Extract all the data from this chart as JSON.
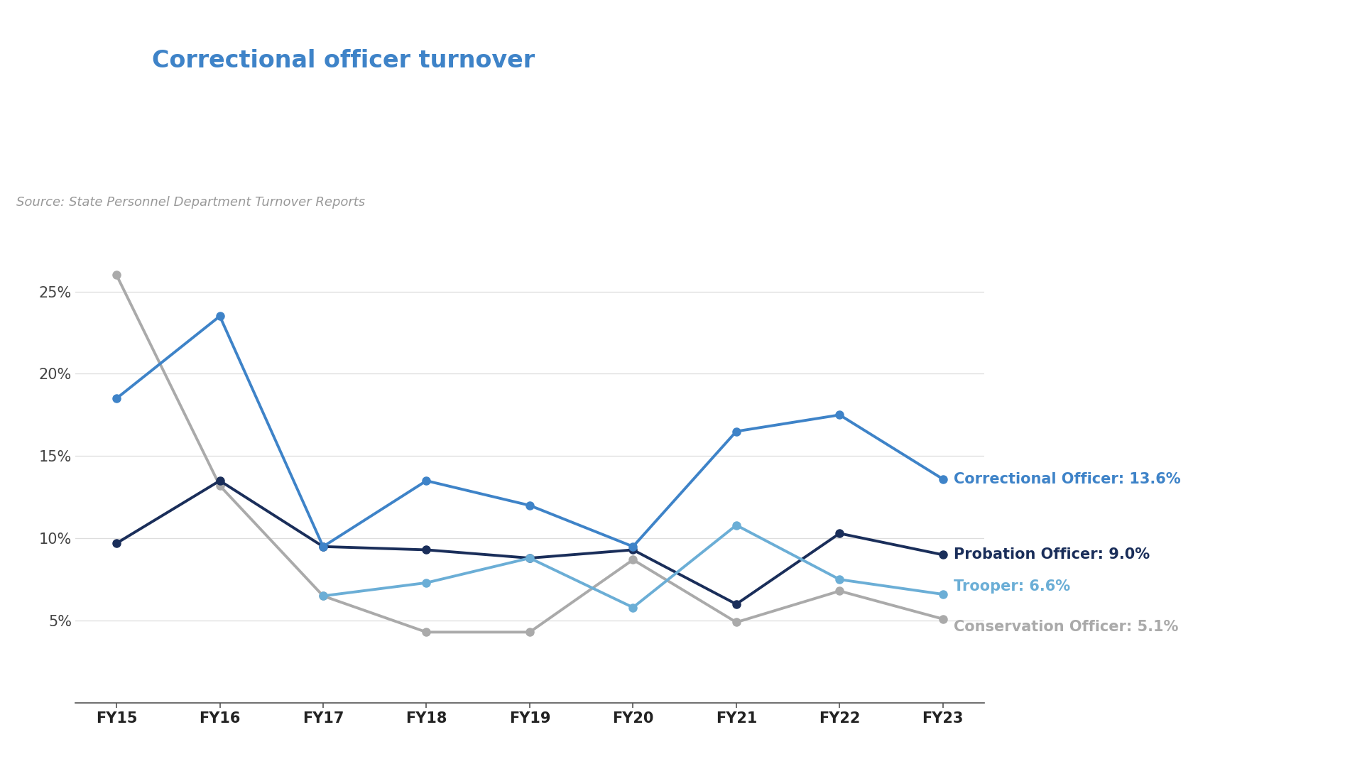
{
  "x_labels": [
    "FY15",
    "FY16",
    "FY17",
    "FY18",
    "FY19",
    "FY20",
    "FY21",
    "FY22",
    "FY23"
  ],
  "correctional_officer": [
    18.5,
    23.5,
    9.5,
    13.5,
    12.0,
    9.5,
    16.5,
    17.5,
    13.6
  ],
  "probation_officer": [
    9.7,
    13.5,
    9.5,
    9.3,
    8.8,
    9.3,
    6.0,
    10.3,
    9.0
  ],
  "trooper": [
    null,
    null,
    6.5,
    7.3,
    8.8,
    5.8,
    10.8,
    7.5,
    6.6
  ],
  "conservation_officer": [
    26.0,
    13.2,
    6.5,
    4.3,
    4.3,
    8.7,
    4.9,
    6.8,
    5.1
  ],
  "colors": {
    "correctional_officer": "#3E83C8",
    "probation_officer": "#1A2E5A",
    "trooper": "#6BAED6",
    "conservation_officer": "#AAAAAA"
  },
  "legend_labels": {
    "correctional_officer": "Correctional Officer: 13.6%",
    "probation_officer": "Probation Officer: 9.0%",
    "trooper": "Trooper: 6.6%",
    "conservation_officer": "Conservation Officer: 5.1%"
  },
  "source_text": "Source: State Personnel Department Turnover Reports",
  "ylim": [
    0,
    28
  ],
  "yticks": [
    5,
    10,
    15,
    20,
    25
  ],
  "background_color": "#FFFFFF",
  "header_color": "#000000",
  "line_width": 2.8,
  "marker_size": 8,
  "title_fontsize": 24,
  "source_fontsize": 13,
  "tick_fontsize": 15,
  "legend_fontsize": 15
}
